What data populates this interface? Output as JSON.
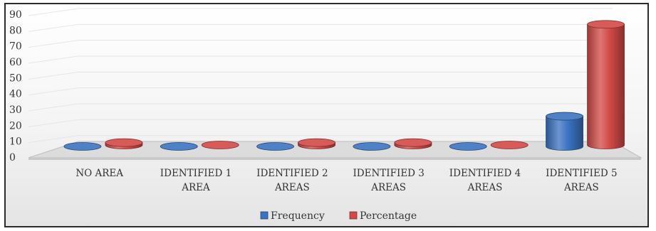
{
  "chart_data": {
    "type": "bar",
    "title": "",
    "xlabel": "",
    "ylabel": "",
    "ylim": [
      0,
      90
    ],
    "yticks": [
      0,
      10,
      20,
      30,
      40,
      50,
      60,
      70,
      80,
      90
    ],
    "categories": [
      [
        "NO AREA"
      ],
      [
        "IDENTIFIED 1",
        "AREA"
      ],
      [
        "IDENTIFIED 2",
        "AREAS"
      ],
      [
        "IDENTIFIED 3",
        "AREAS"
      ],
      [
        "IDENTIFIED 4",
        "AREAS"
      ],
      [
        "IDENTIFIED 5",
        "AREAS"
      ]
    ],
    "series": [
      {
        "name": "Frequency",
        "values": [
          0,
          0,
          0,
          0,
          0,
          19
        ],
        "color": "#3a73c0"
      },
      {
        "name": "Percentage",
        "values": [
          1.5,
          0,
          1.5,
          1.5,
          0,
          76
        ],
        "color": "#d24a47"
      }
    ],
    "grid": true,
    "legend": "bottom-center",
    "style": "3d-cylinder"
  }
}
